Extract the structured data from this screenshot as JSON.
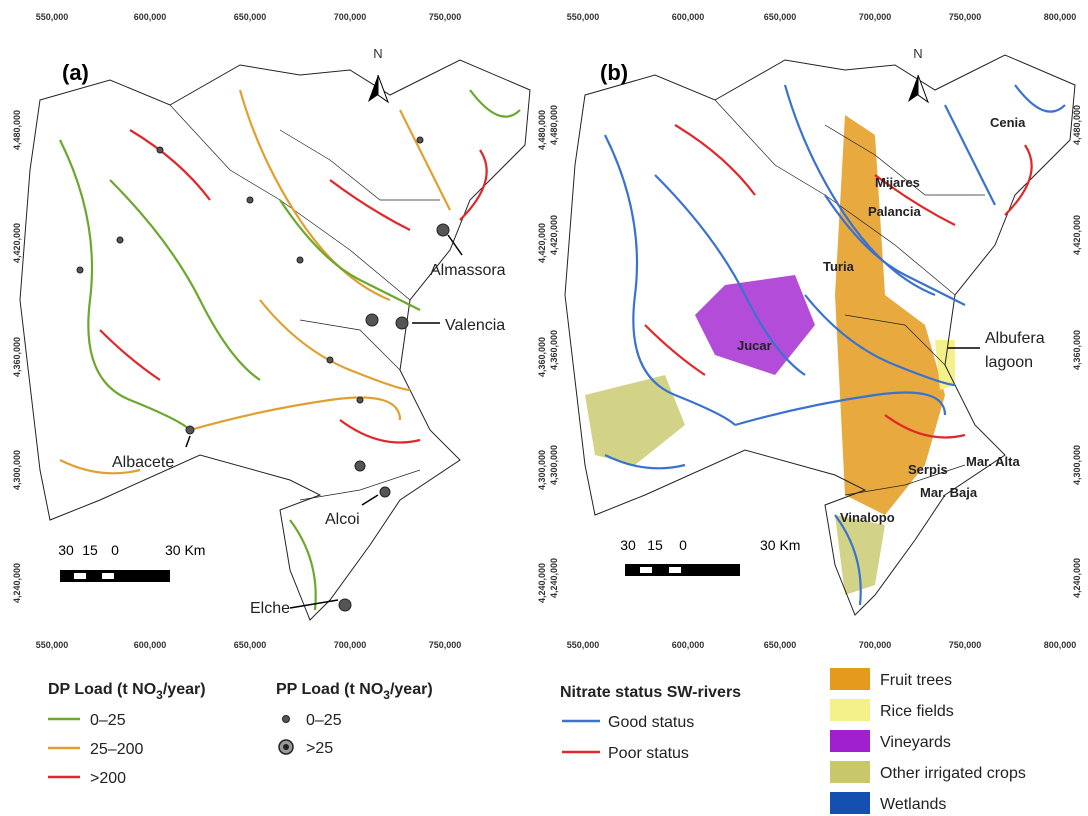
{
  "panels": [
    {
      "label": "(a)",
      "north": "N",
      "x_ticks": [
        "550,000",
        "600,000",
        "650,000",
        "700,000",
        "750,000"
      ],
      "y_ticks": [
        "4,480,000",
        "4,420,000",
        "4,360,000",
        "4,300,000",
        "4,240,000"
      ],
      "places": [
        "Almassora",
        "Valencia",
        "Albacete",
        "Alcoi",
        "Elche"
      ],
      "scale_labels": [
        "30",
        "15",
        "0",
        "30 Km"
      ]
    },
    {
      "label": "(b)",
      "north": "N",
      "x_ticks": [
        "550,000",
        "600,000",
        "650,000",
        "700,000",
        "750,000",
        "800,000"
      ],
      "y_ticks": [
        "4,480,000",
        "4,420,000",
        "4,360,000",
        "4,300,000",
        "4,240,000"
      ],
      "places": [
        "Cenia",
        "Mijares",
        "Palancia",
        "Turia",
        "Jucar",
        "Albufera",
        "lagoon",
        "Serpis",
        "Mar. Alta",
        "Mar. Baja",
        "Vinalopo"
      ],
      "scale_labels": [
        "30",
        "15",
        "0",
        "30 Km"
      ]
    }
  ],
  "legend_dp": {
    "title": [
      "DP Load (t NO",
      "3",
      "/year)"
    ],
    "items": [
      {
        "label": "0–25",
        "color": "#6aa82e"
      },
      {
        "label": "25–200",
        "color": "#e0a030"
      },
      {
        "label": ">200",
        "color": "#e0282a"
      }
    ]
  },
  "legend_pp": {
    "title": [
      "PP Load (t NO",
      "3",
      "/year)"
    ],
    "items": [
      "0–25",
      ">25"
    ]
  },
  "legend_status": {
    "title": "Nitrate status SW-rivers",
    "items": [
      {
        "label": "Good status",
        "color": "#3a72d0"
      },
      {
        "label": "Poor status",
        "color": "#e0282a"
      }
    ]
  },
  "legend_land": [
    {
      "label": "Fruit trees",
      "color": "#e49a1c"
    },
    {
      "label": "Rice fields",
      "color": "#f4f08a"
    },
    {
      "label": "Vineyards",
      "color": "#a020d0"
    },
    {
      "label": "Other irrigated crops",
      "color": "#c8c86a"
    },
    {
      "label": "Wetlands",
      "color": "#1450b0"
    }
  ]
}
